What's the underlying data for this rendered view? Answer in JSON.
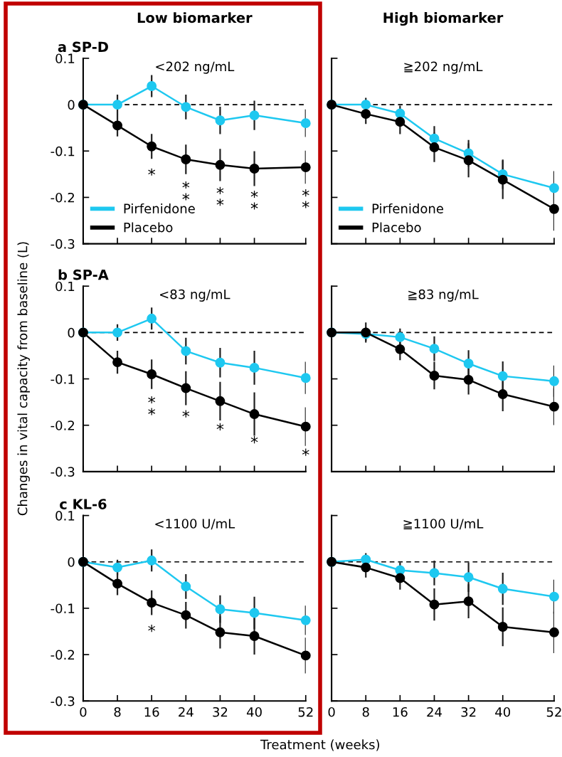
{
  "chart_data": [
    {
      "type": "line",
      "title": "Low biomarker",
      "subtitle": "a SP-D",
      "x": [
        0,
        8,
        16,
        24,
        32,
        40,
        52
      ],
      "xlim": [
        0,
        52
      ],
      "xticks": [
        0,
        8,
        16,
        24,
        32,
        40,
        52
      ],
      "ylim": [
        -0.3,
        0.1
      ],
      "yticks": [
        -0.3,
        -0.2,
        -0.1,
        0,
        0.1
      ],
      "tick_labels": "y",
      "marker": "circle",
      "legend": "bottom left",
      "series": [
        {
          "name": "Pirfenidone",
          "color": "#1ec8f0",
          "values": [
            0,
            0,
            0.04,
            -0.005,
            -0.034,
            -0.023,
            -0.04
          ],
          "errors": [
            null,
            0.02,
            0.022,
            0.025,
            0.028,
            0.03,
            0.028
          ]
        },
        {
          "name": "Placebo",
          "color": "#000000",
          "values": [
            0,
            -0.045,
            -0.09,
            -0.118,
            -0.13,
            -0.138,
            -0.135
          ],
          "errors": [
            null,
            0.022,
            0.025,
            0.03,
            0.033,
            0.036,
            0.034
          ]
        }
      ],
      "ref_lines": [
        {
          "axis": "y",
          "value": 0,
          "color": "#000000",
          "line_style": "dashed"
        }
      ],
      "annotations": [
        "<202 ng/mL",
        {
          "text": "*",
          "x": 16,
          "y": -0.09
        },
        {
          "text": "*\n*",
          "x": 24,
          "y": -0.118
        },
        {
          "text": "*\n*",
          "x": 32,
          "y": -0.13
        },
        {
          "text": "*\n*",
          "x": 40,
          "y": -0.138
        },
        {
          "text": "*\n*",
          "x": 52,
          "y": -0.135
        }
      ]
    },
    {
      "type": "line",
      "title": "High biomarker",
      "x": [
        0,
        8,
        16,
        24,
        32,
        40,
        52
      ],
      "xlim": [
        0,
        52
      ],
      "xticks": [
        0,
        8,
        16,
        24,
        32,
        40,
        52
      ],
      "ylim": [
        -0.3,
        0.1
      ],
      "yticks": [
        -0.3,
        -0.2,
        -0.1,
        0,
        0.1
      ],
      "tick_labels": false,
      "marker": "circle",
      "legend": "bottom left",
      "series": [
        {
          "name": "Pirfenidone",
          "color": "#1ec8f0",
          "values": [
            0,
            0,
            -0.019,
            -0.073,
            -0.105,
            -0.15,
            -0.18
          ],
          "errors": [
            null,
            0.013,
            0.015,
            0.025,
            0.027,
            0.03,
            0.035
          ]
        },
        {
          "name": "Placebo",
          "color": "#000000",
          "values": [
            0,
            -0.02,
            -0.037,
            -0.092,
            -0.12,
            -0.162,
            -0.225
          ],
          "errors": [
            null,
            0.02,
            0.025,
            0.03,
            0.035,
            0.04,
            0.045
          ]
        }
      ],
      "ref_lines": [
        {
          "axis": "y",
          "value": 0,
          "color": "#000000",
          "line_style": "dashed"
        }
      ],
      "annotations": [
        "≧202 ng/mL"
      ]
    },
    {
      "type": "line",
      "subtitle": "b SP-A",
      "ylabel": "Changes in vital capacity from baseline (L)",
      "x": [
        0,
        8,
        16,
        24,
        32,
        40,
        52
      ],
      "xlim": [
        0,
        52
      ],
      "xticks": [
        0,
        8,
        16,
        24,
        32,
        40,
        52
      ],
      "ylim": [
        -0.3,
        0.1
      ],
      "yticks": [
        -0.3,
        -0.2,
        -0.1,
        0,
        0.1
      ],
      "tick_labels": "y",
      "marker": "circle",
      "series": [
        {
          "color": "#1ec8f0",
          "values": [
            0,
            0,
            0.03,
            -0.04,
            -0.065,
            -0.076,
            -0.098
          ],
          "errors": [
            null,
            0.016,
            0.022,
            0.027,
            0.03,
            0.035,
            0.033
          ]
        },
        {
          "color": "#000000",
          "values": [
            0,
            -0.064,
            -0.09,
            -0.12,
            -0.148,
            -0.176,
            -0.203
          ],
          "errors": [
            null,
            0.023,
            0.03,
            0.035,
            0.04,
            0.045,
            0.04
          ]
        }
      ],
      "ref_lines": [
        {
          "axis": "y",
          "value": 0,
          "color": "#000000",
          "line_style": "dashed"
        }
      ],
      "annotations": [
        "<83 ng/mL",
        {
          "text": "*\n*",
          "x": 16,
          "y": -0.09
        },
        {
          "text": "*",
          "x": 24,
          "y": -0.12
        },
        {
          "text": "*",
          "x": 32,
          "y": -0.148
        },
        {
          "text": "*",
          "x": 40,
          "y": -0.176
        },
        {
          "text": "*",
          "x": 52,
          "y": -0.203
        }
      ]
    },
    {
      "type": "line",
      "x": [
        0,
        8,
        16,
        24,
        32,
        40,
        52
      ],
      "xlim": [
        0,
        52
      ],
      "xticks": [
        0,
        8,
        16,
        24,
        32,
        40,
        52
      ],
      "ylim": [
        -0.3,
        0.1
      ],
      "yticks": [
        -0.3,
        -0.2,
        -0.1,
        0,
        0.1
      ],
      "tick_labels": false,
      "marker": "circle",
      "series": [
        {
          "color": "#1ec8f0",
          "values": [
            0,
            -0.003,
            -0.01,
            -0.035,
            -0.067,
            -0.094,
            -0.105
          ],
          "errors": [
            null,
            0.013,
            0.017,
            0.025,
            0.027,
            0.03,
            0.032
          ]
        },
        {
          "color": "#000000",
          "values": [
            0,
            0,
            -0.036,
            -0.093,
            -0.102,
            -0.133,
            -0.16
          ],
          "errors": [
            null,
            0.02,
            0.022,
            0.028,
            0.03,
            0.035,
            0.038
          ]
        }
      ],
      "ref_lines": [
        {
          "axis": "y",
          "value": 0,
          "color": "#000000",
          "line_style": "dashed"
        }
      ],
      "annotations": [
        "≧83 ng/mL"
      ]
    },
    {
      "type": "line",
      "subtitle": "c KL-6",
      "xlabel": "Treatment (weeks)",
      "x": [
        0,
        8,
        16,
        24,
        32,
        40,
        52
      ],
      "xlim": [
        0,
        52
      ],
      "xticks": [
        0,
        8,
        16,
        24,
        32,
        40,
        52
      ],
      "ylim": [
        -0.3,
        0.1
      ],
      "yticks": [
        -0.3,
        -0.2,
        -0.1,
        0,
        0.1
      ],
      "marker": "circle",
      "series": [
        {
          "color": "#1ec8f0",
          "values": [
            0,
            -0.012,
            0.003,
            -0.053,
            -0.102,
            -0.11,
            -0.126
          ],
          "errors": [
            null,
            0.015,
            0.022,
            0.025,
            0.028,
            0.033,
            0.03
          ]
        },
        {
          "color": "#000000",
          "values": [
            0,
            -0.047,
            -0.088,
            -0.115,
            -0.152,
            -0.16,
            -0.202
          ],
          "errors": [
            null,
            0.023,
            0.025,
            0.027,
            0.033,
            0.038,
            0.037
          ]
        }
      ],
      "ref_lines": [
        {
          "axis": "y",
          "value": 0,
          "color": "#000000",
          "line_style": "dashed"
        }
      ],
      "annotations": [
        "<1100 U/mL",
        {
          "text": "*",
          "x": 16,
          "y": -0.088
        }
      ]
    },
    {
      "type": "line",
      "x": [
        0,
        8,
        16,
        24,
        32,
        40,
        52
      ],
      "xlim": [
        0,
        52
      ],
      "xticks": [
        0,
        8,
        16,
        24,
        32,
        40,
        52
      ],
      "ylim": [
        -0.3,
        0.1
      ],
      "yticks": [
        -0.3,
        -0.2,
        -0.1,
        0,
        0.1
      ],
      "tick_labels": "x",
      "marker": "circle",
      "series": [
        {
          "color": "#1ec8f0",
          "values": [
            0,
            0.005,
            -0.018,
            -0.024,
            -0.033,
            -0.058,
            -0.075
          ],
          "errors": [
            null,
            0.012,
            0.015,
            0.025,
            0.03,
            0.033,
            0.035
          ]
        },
        {
          "color": "#000000",
          "values": [
            0,
            -0.012,
            -0.035,
            -0.092,
            -0.085,
            -0.14,
            -0.152
          ],
          "errors": [
            null,
            0.02,
            0.023,
            0.033,
            0.035,
            0.04,
            0.043
          ]
        }
      ],
      "ref_lines": [
        {
          "axis": "y",
          "value": 0,
          "color": "#000000",
          "line_style": "dashed"
        }
      ],
      "annotations": [
        "≧1100 U/mL"
      ]
    }
  ]
}
